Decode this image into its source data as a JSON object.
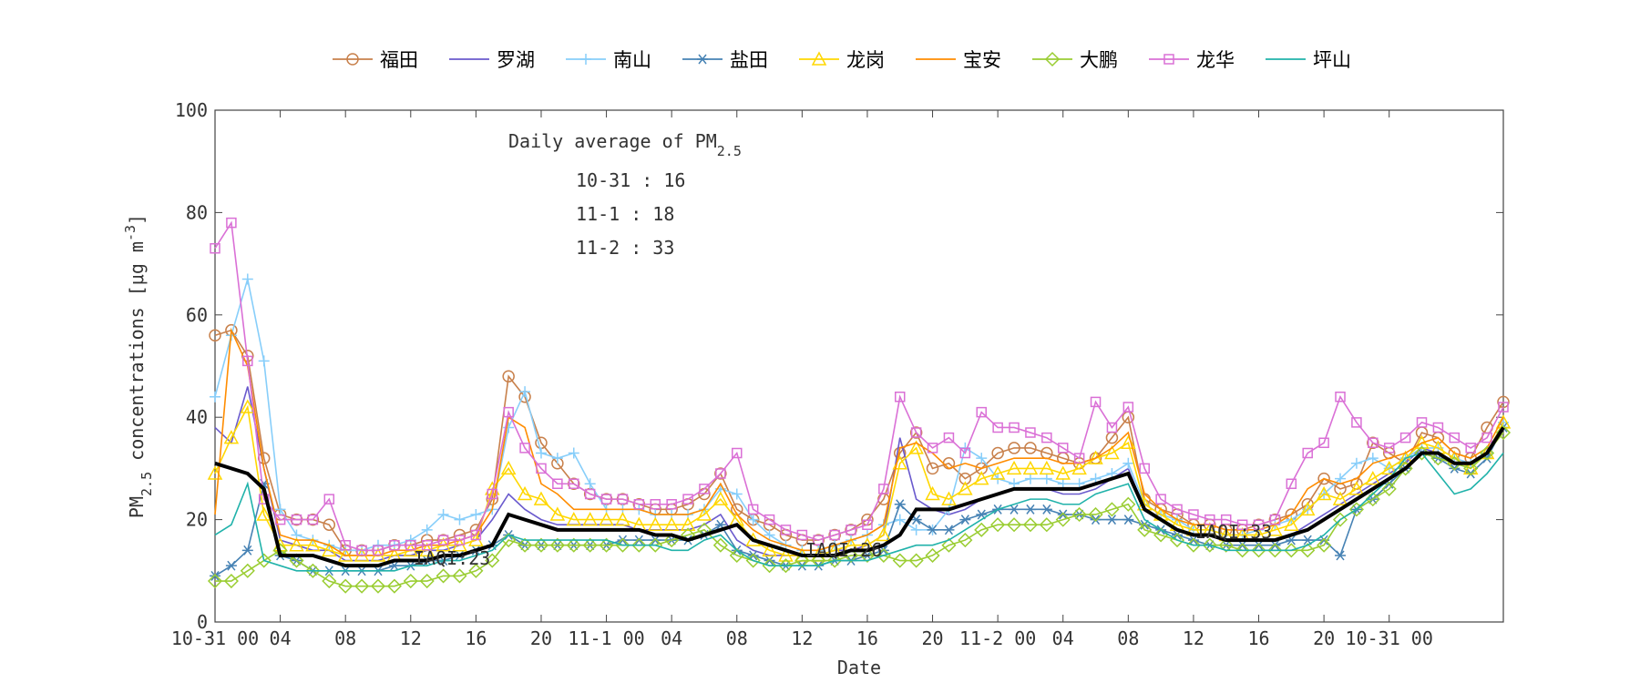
{
  "chart_data": {
    "type": "line",
    "ylabel": [
      "PM",
      "2.5",
      " concentrations [μg m",
      "-3",
      "]"
    ],
    "xlabel": "Date",
    "annotation_title": [
      "Daily average of PM",
      "2.5"
    ],
    "annotations": [
      "10-31 : 16",
      "11-1 : 18",
      "11-2 : 33"
    ],
    "iaqi_labels": [
      "IAQI:23",
      "IAQI:26",
      "IAQI:33"
    ],
    "xlim": [
      0,
      79
    ],
    "ylim": [
      0,
      100
    ],
    "yticks": [
      0,
      20,
      40,
      60,
      80,
      100
    ],
    "xticks": [
      {
        "value": 0,
        "label": "10-31 00"
      },
      {
        "value": 4,
        "label": "04"
      },
      {
        "value": 8,
        "label": "08"
      },
      {
        "value": 12,
        "label": "12"
      },
      {
        "value": 16,
        "label": "16"
      },
      {
        "value": 20,
        "label": "20"
      },
      {
        "value": 24,
        "label": "11-1 00"
      },
      {
        "value": 28,
        "label": "04"
      },
      {
        "value": 32,
        "label": "08"
      },
      {
        "value": 36,
        "label": "12"
      },
      {
        "value": 40,
        "label": "16"
      },
      {
        "value": 44,
        "label": "20"
      },
      {
        "value": 48,
        "label": "11-2 00"
      },
      {
        "value": 52,
        "label": "04"
      },
      {
        "value": 56,
        "label": "08"
      },
      {
        "value": 60,
        "label": "12"
      },
      {
        "value": 64,
        "label": "16"
      },
      {
        "value": 68,
        "label": "20"
      },
      {
        "value": 72,
        "label": "10-31 00"
      }
    ],
    "x": [
      0,
      1,
      2,
      3,
      4,
      5,
      6,
      7,
      8,
      9,
      10,
      11,
      12,
      13,
      14,
      15,
      16,
      17,
      18,
      19,
      20,
      21,
      22,
      23,
      24,
      25,
      26,
      27,
      28,
      29,
      30,
      31,
      32,
      33,
      34,
      35,
      36,
      37,
      38,
      39,
      40,
      41,
      42,
      43,
      44,
      45,
      46,
      47,
      48,
      49,
      50,
      51,
      52,
      53,
      54,
      55,
      56,
      57,
      58,
      59,
      60,
      61,
      62,
      63,
      64,
      65,
      66,
      67,
      68,
      69,
      70,
      71,
      72,
      73,
      74,
      75,
      76,
      77,
      78,
      79
    ],
    "series": [
      {
        "name": "福田",
        "color": "#c8804b",
        "marker": "circle",
        "values": [
          56,
          57,
          52,
          32,
          21,
          20,
          20,
          19,
          14,
          14,
          14,
          15,
          15,
          16,
          16,
          17,
          18,
          24,
          48,
          44,
          35,
          31,
          27,
          25,
          24,
          24,
          23,
          22,
          22,
          23,
          25,
          29,
          22,
          20,
          19,
          17,
          16,
          16,
          17,
          18,
          20,
          24,
          33,
          37,
          30,
          31,
          28,
          30,
          33,
          34,
          34,
          33,
          32,
          31,
          32,
          36,
          40,
          24,
          22,
          21,
          19,
          19,
          18,
          18,
          19,
          20,
          21,
          23,
          28,
          26,
          27,
          35,
          33,
          31,
          37,
          36,
          33,
          32,
          38,
          43
        ]
      },
      {
        "name": "罗湖",
        "color": "#6a5acd",
        "marker": "none",
        "values": [
          38,
          35,
          46,
          30,
          16,
          15,
          14,
          14,
          12,
          12,
          12,
          13,
          13,
          14,
          14,
          15,
          16,
          20,
          25,
          22,
          20,
          19,
          19,
          19,
          19,
          19,
          18,
          18,
          18,
          18,
          19,
          21,
          16,
          14,
          13,
          13,
          13,
          13,
          14,
          14,
          15,
          17,
          36,
          24,
          22,
          21,
          22,
          24,
          25,
          26,
          26,
          26,
          25,
          25,
          26,
          28,
          30,
          22,
          20,
          18,
          17,
          17,
          16,
          16,
          16,
          16,
          17,
          19,
          21,
          23,
          25,
          27,
          29,
          31,
          34,
          33,
          31,
          31,
          33,
          38
        ]
      },
      {
        "name": "南山",
        "color": "#87cefa",
        "marker": "plus",
        "values": [
          44,
          56,
          67,
          51,
          22,
          17,
          16,
          15,
          14,
          14,
          15,
          15,
          16,
          18,
          21,
          20,
          21,
          22,
          38,
          45,
          33,
          32,
          33,
          27,
          22,
          22,
          22,
          21,
          21,
          21,
          22,
          26,
          25,
          20,
          17,
          15,
          14,
          14,
          15,
          16,
          17,
          19,
          20,
          18,
          18,
          22,
          34,
          32,
          28,
          27,
          28,
          28,
          27,
          27,
          28,
          29,
          31,
          23,
          21,
          20,
          18,
          18,
          17,
          17,
          18,
          19,
          20,
          22,
          25,
          28,
          31,
          32,
          30,
          32,
          34,
          34,
          32,
          31,
          33,
          39
        ]
      },
      {
        "name": "盐田",
        "color": "#4682b4",
        "marker": "star",
        "values": [
          9,
          11,
          14,
          27,
          13,
          12,
          10,
          10,
          10,
          10,
          10,
          11,
          11,
          12,
          12,
          13,
          14,
          15,
          17,
          15,
          15,
          15,
          15,
          15,
          15,
          16,
          16,
          16,
          16,
          16,
          17,
          19,
          14,
          13,
          12,
          11,
          11,
          11,
          12,
          12,
          13,
          14,
          23,
          20,
          18,
          18,
          20,
          21,
          22,
          22,
          22,
          22,
          21,
          21,
          20,
          20,
          20,
          19,
          18,
          17,
          16,
          15,
          15,
          15,
          15,
          15,
          16,
          16,
          16,
          13,
          22,
          24,
          27,
          30,
          33,
          32,
          30,
          29,
          32,
          38
        ]
      },
      {
        "name": "龙岗",
        "color": "#ffd700",
        "marker": "triangle",
        "values": [
          29,
          36,
          42,
          21,
          15,
          15,
          15,
          14,
          13,
          13,
          13,
          13,
          14,
          14,
          15,
          15,
          16,
          26,
          30,
          25,
          24,
          21,
          20,
          20,
          20,
          20,
          19,
          19,
          19,
          19,
          21,
          24,
          20,
          16,
          14,
          13,
          13,
          13,
          14,
          15,
          15,
          17,
          31,
          34,
          25,
          24,
          26,
          28,
          29,
          30,
          30,
          30,
          29,
          30,
          32,
          33,
          35,
          23,
          21,
          19,
          18,
          18,
          17,
          17,
          17,
          18,
          19,
          22,
          25,
          24,
          26,
          28,
          30,
          32,
          35,
          34,
          32,
          30,
          33,
          39
        ]
      },
      {
        "name": "宝安",
        "color": "#ff8c00",
        "marker": "none",
        "values": [
          21,
          57,
          50,
          30,
          17,
          16,
          16,
          15,
          13,
          13,
          13,
          14,
          14,
          15,
          15,
          16,
          17,
          22,
          40,
          38,
          27,
          25,
          22,
          22,
          22,
          22,
          22,
          21,
          21,
          21,
          22,
          27,
          21,
          18,
          16,
          15,
          14,
          14,
          15,
          16,
          17,
          19,
          34,
          35,
          33,
          30,
          31,
          30,
          31,
          32,
          32,
          32,
          31,
          31,
          32,
          34,
          37,
          25,
          22,
          20,
          19,
          19,
          18,
          18,
          18,
          19,
          21,
          26,
          28,
          27,
          28,
          31,
          32,
          33,
          35,
          36,
          33,
          32,
          34,
          40
        ]
      },
      {
        "name": "大鹏",
        "color": "#9acd32",
        "marker": "diamond",
        "values": [
          8,
          8,
          10,
          12,
          14,
          12,
          10,
          8,
          7,
          7,
          7,
          7,
          8,
          8,
          9,
          9,
          10,
          12,
          16,
          15,
          15,
          15,
          15,
          15,
          15,
          15,
          15,
          15,
          16,
          17,
          18,
          15,
          13,
          12,
          11,
          11,
          12,
          12,
          12,
          13,
          13,
          13,
          12,
          12,
          13,
          15,
          16,
          18,
          19,
          19,
          19,
          19,
          20,
          21,
          21,
          22,
          23,
          18,
          17,
          16,
          15,
          15,
          15,
          14,
          14,
          14,
          14,
          14,
          15,
          20,
          22,
          24,
          26,
          30,
          33,
          32,
          31,
          30,
          33,
          37
        ]
      },
      {
        "name": "龙华",
        "color": "#da70d6",
        "marker": "square",
        "values": [
          73,
          78,
          51,
          24,
          20,
          20,
          20,
          24,
          15,
          14,
          14,
          15,
          15,
          15,
          16,
          16,
          17,
          25,
          41,
          34,
          30,
          27,
          27,
          25,
          24,
          24,
          23,
          23,
          23,
          24,
          26,
          29,
          33,
          22,
          20,
          18,
          17,
          16,
          17,
          18,
          19,
          26,
          44,
          37,
          34,
          36,
          33,
          41,
          38,
          38,
          37,
          36,
          34,
          32,
          43,
          38,
          42,
          30,
          24,
          22,
          21,
          20,
          20,
          19,
          19,
          20,
          27,
          33,
          35,
          44,
          39,
          35,
          34,
          36,
          39,
          38,
          36,
          34,
          36,
          42
        ]
      },
      {
        "name": "坪山",
        "color": "#20b2aa",
        "marker": "none",
        "values": [
          17,
          19,
          27,
          12,
          11,
          10,
          10,
          10,
          10,
          10,
          10,
          10,
          11,
          11,
          12,
          12,
          13,
          14,
          17,
          16,
          16,
          16,
          16,
          16,
          16,
          15,
          15,
          15,
          14,
          14,
          16,
          17,
          14,
          12,
          11,
          11,
          11,
          11,
          12,
          12,
          12,
          13,
          14,
          15,
          15,
          16,
          18,
          20,
          22,
          23,
          24,
          24,
          23,
          23,
          25,
          26,
          27,
          20,
          18,
          16,
          15,
          15,
          14,
          14,
          14,
          14,
          14,
          15,
          17,
          20,
          22,
          25,
          28,
          32,
          33,
          29,
          25,
          26,
          29,
          33
        ]
      },
      {
        "color": "#000000",
        "marker": "none",
        "values": [
          31,
          30,
          29,
          26,
          13,
          13,
          13,
          12,
          11,
          11,
          11,
          12,
          12,
          12,
          13,
          13,
          14,
          15,
          21,
          20,
          19,
          18,
          18,
          18,
          18,
          18,
          18,
          17,
          17,
          16,
          17,
          18,
          19,
          16,
          15,
          14,
          13,
          13,
          13,
          14,
          14,
          15,
          17,
          22,
          22,
          22,
          23,
          24,
          25,
          26,
          26,
          26,
          26,
          26,
          27,
          28,
          29,
          22,
          20,
          18,
          17,
          17,
          16,
          16,
          16,
          16,
          17,
          18,
          20,
          22,
          24,
          26,
          28,
          30,
          33,
          33,
          31,
          31,
          33,
          38
        ]
      }
    ]
  }
}
